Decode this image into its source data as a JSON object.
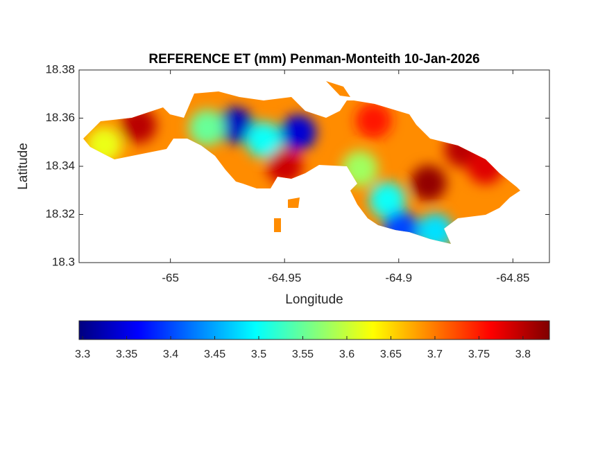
{
  "chart_data": {
    "type": "heatmap-map",
    "title": "REFERENCE ET (mm) Penman-Monteith 10-Jan-2026",
    "x_label": "Longitude",
    "y_label": "Latitude",
    "xlim": [
      -65.04,
      -64.834
    ],
    "xticks": [
      -65,
      -64.95,
      -64.9,
      -64.85
    ],
    "ylim": [
      18.3,
      18.38
    ],
    "yticks": [
      18.3,
      18.32,
      18.34,
      18.36,
      18.38
    ],
    "colormap": "jet",
    "clim": [
      3.296,
      3.83
    ],
    "cticks": [
      3.3,
      3.35,
      3.4,
      3.45,
      3.5,
      3.55,
      3.6,
      3.65,
      3.7,
      3.75,
      3.8
    ],
    "hotspots": [
      {
        "lon": -64.9715,
        "lat": 18.357,
        "value": 3.33
      },
      {
        "lon": -64.944,
        "lat": 18.354,
        "value": 3.34
      },
      {
        "lon": -64.959,
        "lat": 18.351,
        "value": 3.5
      },
      {
        "lon": -64.984,
        "lat": 18.356,
        "value": 3.55
      },
      {
        "lon": -65.014,
        "lat": 18.357,
        "value": 3.8
      },
      {
        "lon": -64.95,
        "lat": 18.34,
        "value": 3.79
      },
      {
        "lon": -64.887,
        "lat": 18.333,
        "value": 3.82
      },
      {
        "lon": -64.872,
        "lat": 18.347,
        "value": 3.8
      },
      {
        "lon": -64.911,
        "lat": 18.359,
        "value": 3.75
      },
      {
        "lon": -64.905,
        "lat": 18.326,
        "value": 3.5
      },
      {
        "lon": -64.899,
        "lat": 18.314,
        "value": 3.4
      },
      {
        "lon": -64.917,
        "lat": 18.339,
        "value": 3.58
      },
      {
        "lon": -65.029,
        "lat": 18.349,
        "value": 3.62
      },
      {
        "lon": -64.862,
        "lat": 18.34,
        "value": 3.78
      },
      {
        "lon": -64.884,
        "lat": 18.313,
        "value": 3.48
      }
    ]
  }
}
